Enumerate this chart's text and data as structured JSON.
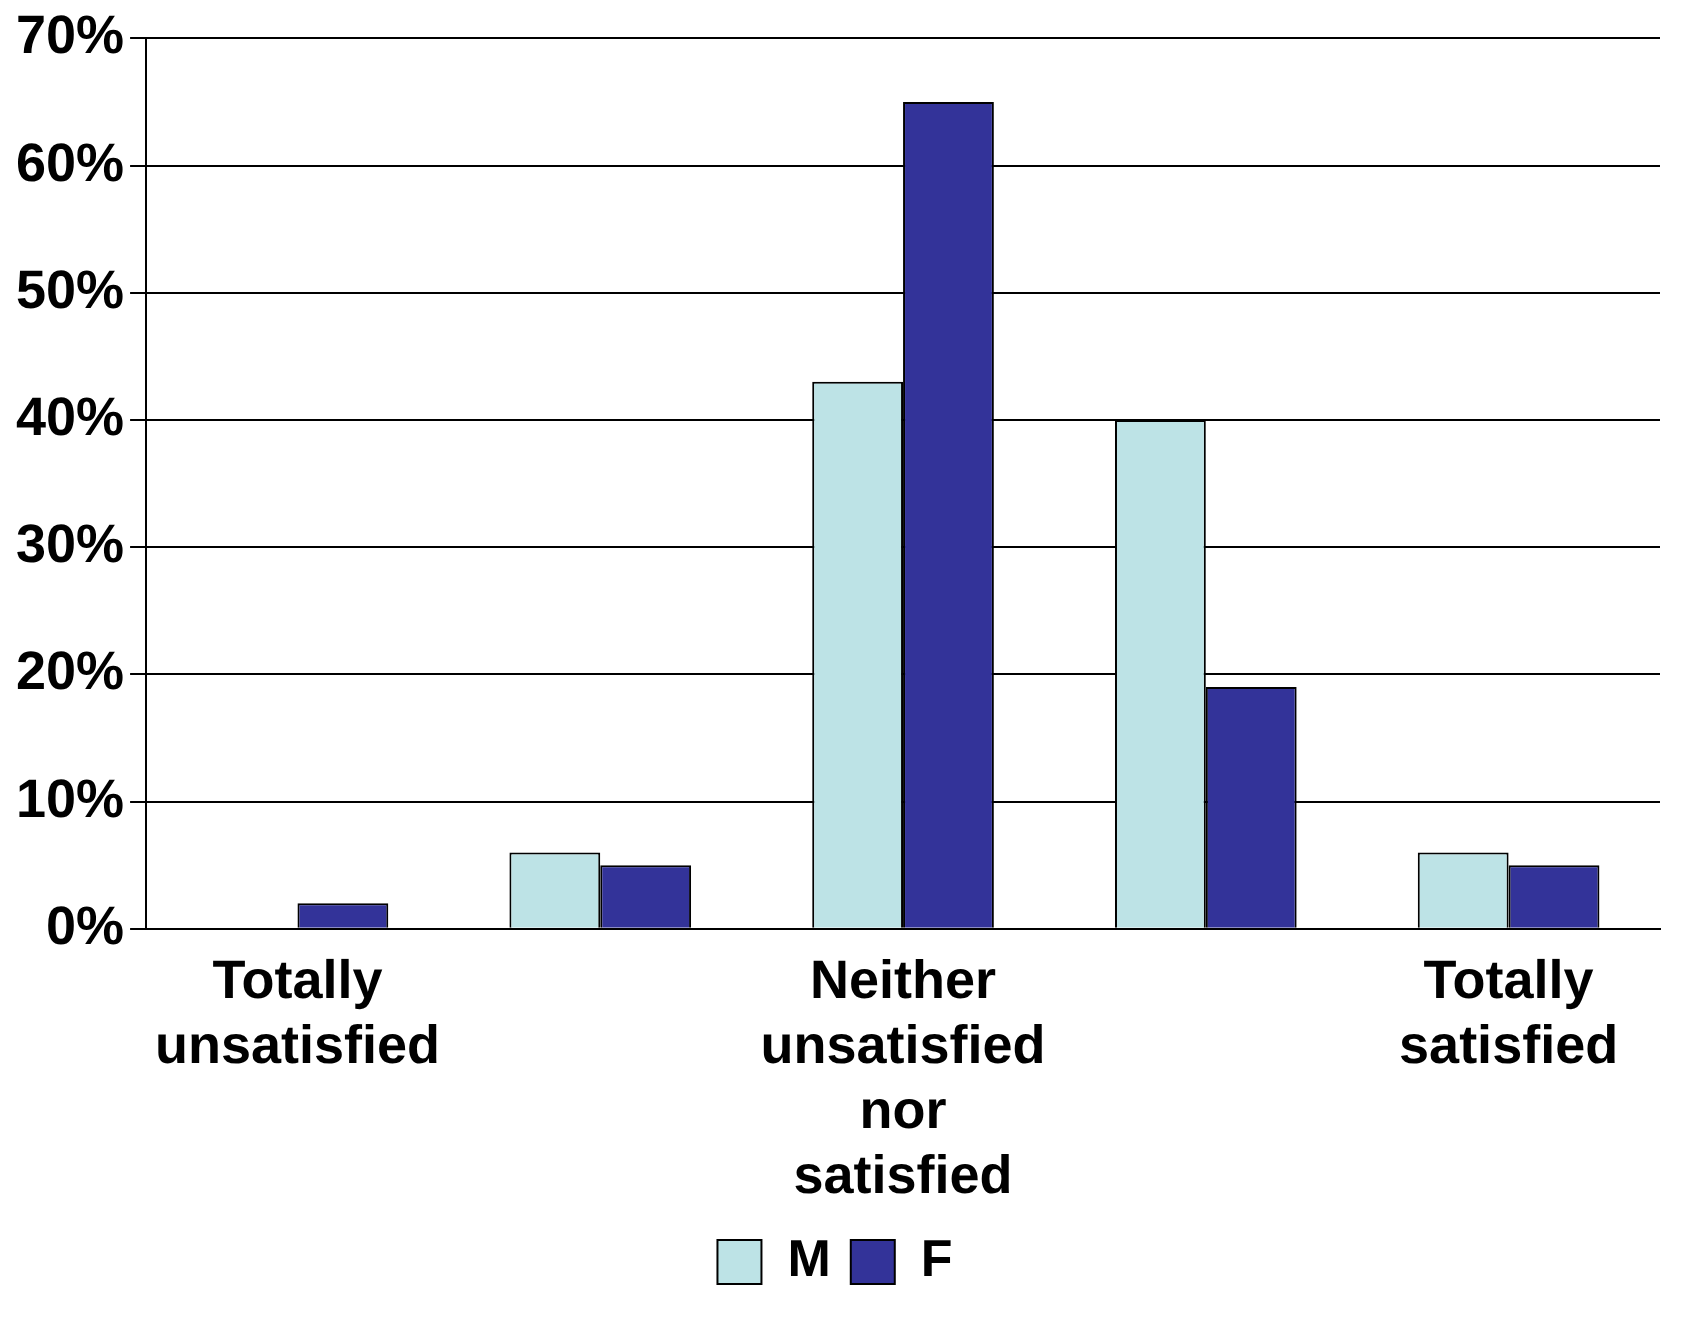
{
  "chart_data": {
    "type": "bar",
    "categories": [
      "Totally unsatisfied",
      null,
      "Neither unsatisfied nor satisfied",
      null,
      "Totally satisfied"
    ],
    "series": [
      {
        "name": "M",
        "color": "#bde3e6",
        "values": [
          0,
          6,
          43,
          40,
          6
        ]
      },
      {
        "name": "F",
        "color": "#333399",
        "values": [
          2,
          5,
          65,
          19,
          5
        ]
      }
    ],
    "ylim": [
      0,
      70
    ],
    "yticks": [
      {
        "value": 0,
        "label": "0%"
      },
      {
        "value": 10,
        "label": "10%"
      },
      {
        "value": 20,
        "label": "20%"
      },
      {
        "value": 30,
        "label": "30%"
      },
      {
        "value": 40,
        "label": "40%"
      },
      {
        "value": 50,
        "label": "50%"
      },
      {
        "value": 60,
        "label": "60%"
      },
      {
        "value": 70,
        "label": "70%"
      }
    ],
    "grid": "y",
    "legend": "bottom"
  }
}
